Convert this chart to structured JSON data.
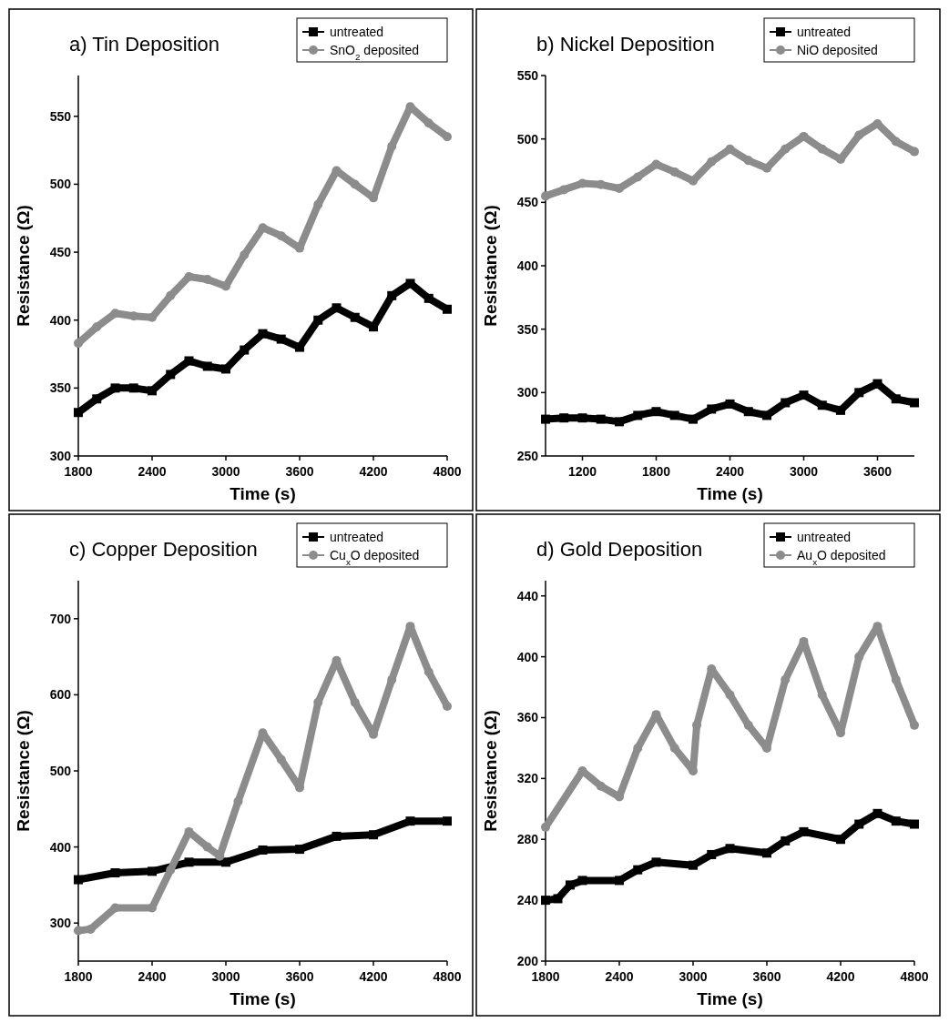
{
  "chart_data": [
    {
      "type": "line",
      "title": "a) Tin Deposition",
      "xlabel": "Time (s)",
      "ylabel": "Resistance (Ω)",
      "xlim": [
        1800,
        4800
      ],
      "xticks": [
        1800,
        2400,
        3000,
        3600,
        4200,
        4800
      ],
      "ylim": [
        300,
        580
      ],
      "yticks": [
        300,
        350,
        400,
        450,
        500,
        550
      ],
      "legend": "top right",
      "series": [
        {
          "name": "untreated",
          "color": "#000000",
          "marker": "square",
          "x": [
            1800,
            1950,
            2100,
            2250,
            2400,
            2550,
            2700,
            2850,
            3000,
            3150,
            3300,
            3450,
            3600,
            3750,
            3900,
            4050,
            4200,
            4350,
            4500,
            4650,
            4800
          ],
          "values": [
            332,
            342,
            350,
            350,
            348,
            360,
            370,
            366,
            364,
            378,
            390,
            386,
            380,
            400,
            409,
            402,
            395,
            418,
            427,
            416,
            408
          ]
        },
        {
          "name": "SnO$_{2}$ deposited",
          "color": "#8c8c8c",
          "marker": "circle",
          "x": [
            1800,
            1950,
            2100,
            2250,
            2400,
            2550,
            2700,
            2850,
            3000,
            3150,
            3300,
            3450,
            3600,
            3750,
            3900,
            4050,
            4200,
            4350,
            4500,
            4650,
            4800
          ],
          "values": [
            383,
            395,
            405,
            403,
            402,
            418,
            432,
            430,
            425,
            448,
            468,
            462,
            453,
            485,
            510,
            500,
            490,
            528,
            557,
            545,
            535
          ]
        }
      ]
    },
    {
      "type": "line",
      "title": "b) Nickel Deposition",
      "xlabel": "Time (s)",
      "ylabel": "Resistance (Ω)",
      "xlim": [
        900,
        3900
      ],
      "xticks": [
        1200,
        1800,
        2400,
        3000,
        3600
      ],
      "ylim": [
        250,
        550
      ],
      "yticks": [
        250,
        300,
        350,
        400,
        450,
        500,
        550
      ],
      "legend": "top right",
      "series": [
        {
          "name": "untreated",
          "color": "#000000",
          "marker": "square",
          "x": [
            900,
            1050,
            1200,
            1350,
            1500,
            1650,
            1800,
            1950,
            2100,
            2250,
            2400,
            2550,
            2700,
            2850,
            3000,
            3150,
            3300,
            3450,
            3600,
            3750,
            3900
          ],
          "values": [
            279,
            280,
            280,
            279,
            277,
            282,
            285,
            282,
            279,
            287,
            291,
            285,
            282,
            292,
            298,
            290,
            286,
            300,
            307,
            295,
            292
          ]
        },
        {
          "name": "NiO deposited",
          "color": "#8c8c8c",
          "marker": "circle",
          "x": [
            900,
            1050,
            1200,
            1350,
            1500,
            1650,
            1800,
            1950,
            2100,
            2250,
            2400,
            2550,
            2700,
            2850,
            3000,
            3150,
            3300,
            3450,
            3600,
            3750,
            3900
          ],
          "values": [
            455,
            460,
            465,
            464,
            461,
            470,
            480,
            474,
            467,
            482,
            492,
            483,
            477,
            492,
            502,
            492,
            484,
            503,
            512,
            498,
            490
          ]
        }
      ]
    },
    {
      "type": "line",
      "title": "c) Copper Deposition",
      "xlabel": "Time (s)",
      "ylabel": "Resistance (Ω)",
      "xlim": [
        1800,
        4800
      ],
      "xticks": [
        1800,
        2400,
        3000,
        3600,
        4200,
        4800
      ],
      "ylim": [
        250,
        750
      ],
      "yticks": [
        300,
        400,
        500,
        600,
        700
      ],
      "legend": "top right",
      "series": [
        {
          "name": "untreated",
          "color": "#000000",
          "marker": "square",
          "x": [
            1800,
            2100,
            2400,
            2700,
            3000,
            3300,
            3600,
            3900,
            4200,
            4500,
            4800
          ],
          "values": [
            357,
            366,
            368,
            380,
            380,
            396,
            397,
            414,
            416,
            434,
            434
          ]
        },
        {
          "name": "Cu$_{x}$O deposited",
          "color": "#8c8c8c",
          "marker": "circle",
          "x": [
            1800,
            1900,
            2100,
            2400,
            2550,
            2700,
            2850,
            2950,
            3100,
            3300,
            3450,
            3600,
            3750,
            3900,
            4050,
            4200,
            4350,
            4500,
            4650,
            4800
          ],
          "values": [
            290,
            292,
            320,
            320,
            370,
            420,
            400,
            388,
            460,
            550,
            515,
            478,
            590,
            645,
            590,
            548,
            620,
            690,
            630,
            585
          ]
        }
      ]
    },
    {
      "type": "line",
      "title": "d) Gold Deposition",
      "xlabel": "Time (s)",
      "ylabel": "Resistance (Ω)",
      "xlim": [
        1800,
        4800
      ],
      "xticks": [
        1800,
        2400,
        3000,
        3600,
        4200,
        4800
      ],
      "ylim": [
        200,
        450
      ],
      "yticks": [
        200,
        240,
        280,
        320,
        360,
        400,
        440
      ],
      "legend": "top right",
      "series": [
        {
          "name": "untreated",
          "color": "#000000",
          "marker": "square",
          "x": [
            1800,
            1900,
            2000,
            2100,
            2400,
            2550,
            2700,
            3000,
            3150,
            3300,
            3600,
            3750,
            3900,
            4200,
            4350,
            4500,
            4650,
            4800
          ],
          "values": [
            240,
            241,
            250,
            253,
            253,
            260,
            265,
            263,
            270,
            274,
            271,
            279,
            285,
            280,
            290,
            297,
            292,
            290
          ]
        },
        {
          "name": "Au$_{x}$O deposited",
          "color": "#8c8c8c",
          "marker": "circle",
          "x": [
            1800,
            2100,
            2250,
            2400,
            2550,
            2700,
            2850,
            3000,
            3030,
            3150,
            3300,
            3450,
            3600,
            3750,
            3900,
            4050,
            4200,
            4350,
            4500,
            4650,
            4800
          ],
          "values": [
            288,
            325,
            315,
            308,
            340,
            362,
            340,
            325,
            355,
            392,
            375,
            355,
            340,
            385,
            410,
            375,
            350,
            400,
            420,
            385,
            355
          ]
        }
      ]
    }
  ]
}
